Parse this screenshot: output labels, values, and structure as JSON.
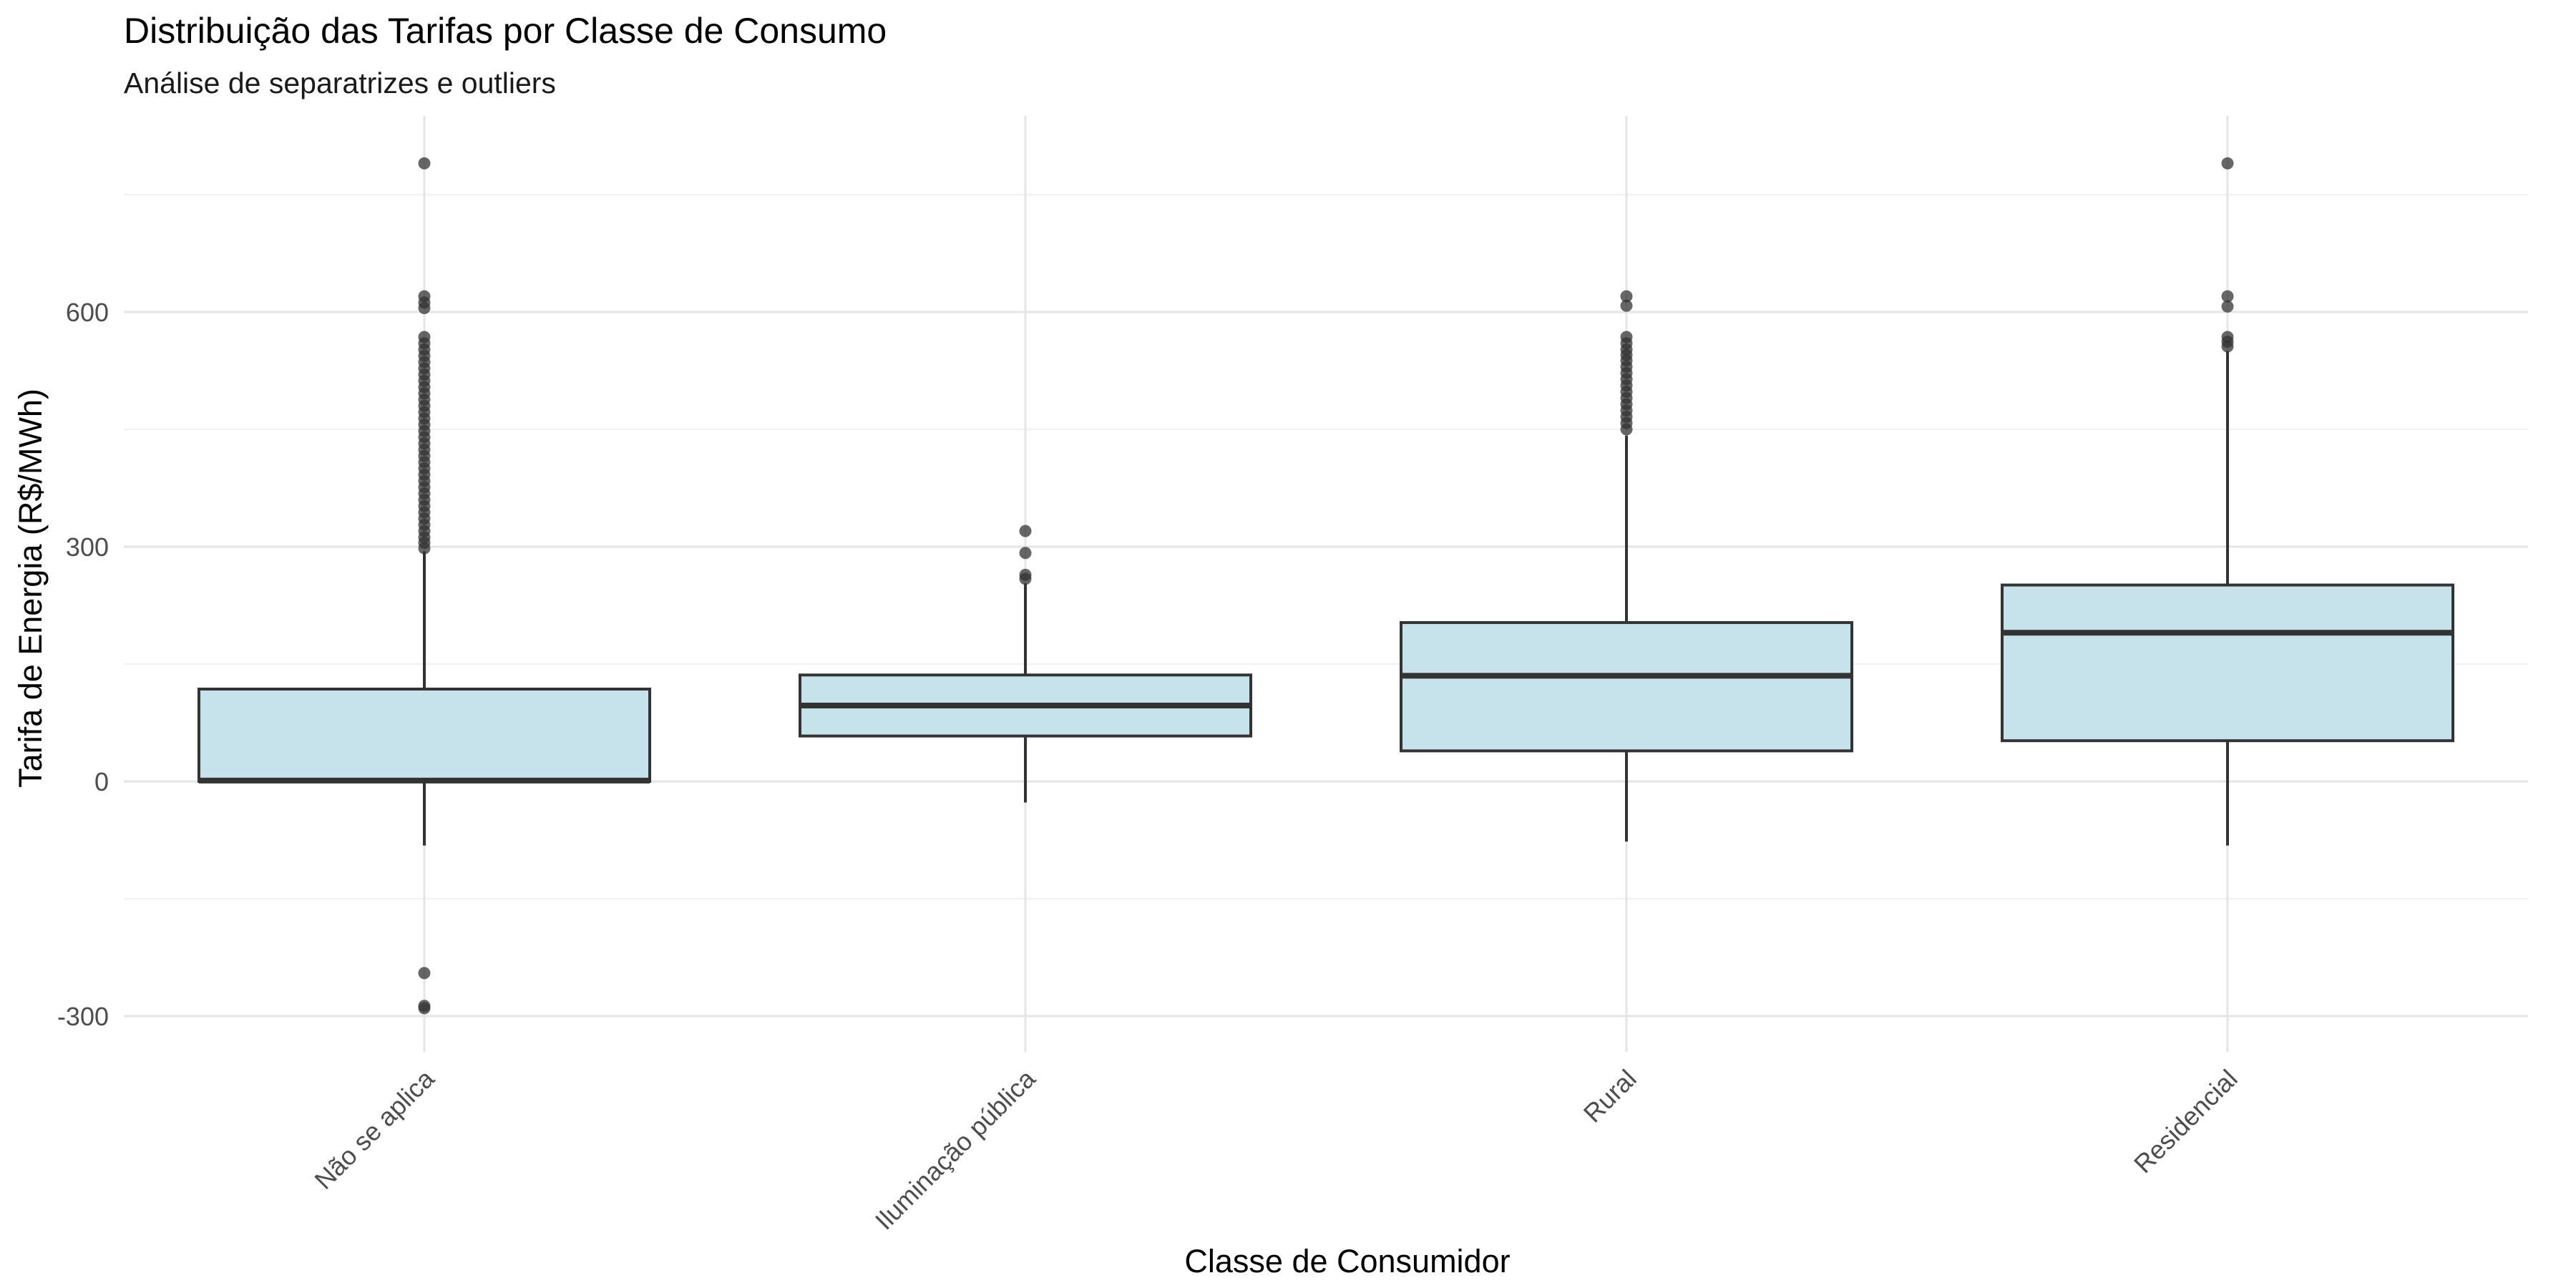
{
  "chart_data": {
    "type": "box",
    "title": "Distribuição das Tarifas por Classe de Consumo",
    "subtitle": "Análise de separatrizes e outliers",
    "xlabel": "Classe de Consumidor",
    "ylabel": "Tarifa de Energia (R$/MWh)",
    "ylim": [
      -330,
      850
    ],
    "yticks": [
      -300,
      0,
      300,
      600
    ],
    "ytick_labels": [
      "-300",
      "0",
      "300",
      "600"
    ],
    "grid": true,
    "legend": "none",
    "colors": {
      "box_fill": "#c6e3eb",
      "box_stroke": "#333333",
      "median": "#333333",
      "outlier": "#333333"
    },
    "categories": [
      "Não se aplica",
      "Iluminação pública",
      "Rural",
      "Residencial"
    ],
    "boxes": [
      {
        "category": "Não se aplica",
        "whisker_low": -82,
        "q1": 0,
        "median": 1,
        "q3": 118,
        "whisker_high": 294,
        "outliers": [
          790,
          620,
          612,
          605,
          568,
          560,
          552,
          544,
          536,
          528,
          520,
          512,
          504,
          496,
          488,
          480,
          472,
          464,
          456,
          448,
          440,
          432,
          424,
          416,
          408,
          400,
          392,
          384,
          376,
          368,
          360,
          352,
          344,
          336,
          328,
          320,
          312,
          305,
          298,
          -245,
          -287,
          -290
        ]
      },
      {
        "category": "Iluminação pública",
        "whisker_low": -27,
        "q1": 58,
        "median": 97,
        "q3": 136,
        "whisker_high": 253,
        "outliers": [
          320,
          292,
          264,
          259
        ]
      },
      {
        "category": "Rural",
        "whisker_low": -77,
        "q1": 39,
        "median": 135,
        "q3": 203,
        "whisker_high": 442,
        "outliers": [
          620,
          608,
          568,
          560,
          552,
          545,
          538,
          530,
          522,
          514,
          506,
          498,
          490,
          482,
          474,
          466,
          458,
          450
        ]
      },
      {
        "category": "Residencial",
        "whisker_low": -82,
        "q1": 52,
        "median": 190,
        "q3": 251,
        "whisker_high": 550,
        "outliers": [
          790,
          620,
          607,
          568,
          562,
          556
        ]
      }
    ]
  }
}
